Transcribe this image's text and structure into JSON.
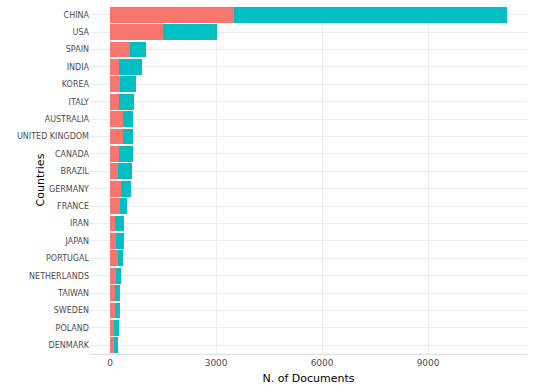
{
  "chart_data": {
    "type": "bar",
    "orientation": "horizontal",
    "stacked": true,
    "grid": true,
    "x_label": "N. of Documents",
    "y_label": "Countries",
    "categories": [
      "CHINA",
      "USA",
      "SPAIN",
      "INDIA",
      "KOREA",
      "ITALY",
      "AUSTRALIA",
      "UNITED KINGDOM",
      "CANADA",
      "BRAZIL",
      "GERMANY",
      "FRANCE",
      "IRAN",
      "JAPAN",
      "PORTUGAL",
      "NETHERLANDS",
      "TAIWAN",
      "SWEDEN",
      "POLAND",
      "DENMARK"
    ],
    "series": [
      {
        "color": "#F8766D",
        "values": [
          3520,
          1490,
          570,
          250,
          270,
          250,
          350,
          350,
          250,
          220,
          300,
          270,
          150,
          170,
          220,
          170,
          140,
          150,
          120,
          110
        ]
      },
      {
        "color": "#00BFC4",
        "values": [
          7700,
          1540,
          450,
          640,
          450,
          420,
          300,
          290,
          400,
          400,
          300,
          200,
          250,
          230,
          130,
          150,
          140,
          120,
          140,
          120
        ]
      }
    ],
    "xlim": [
      -570,
      11800
    ],
    "xticks": [
      0,
      3000,
      6000,
      9000
    ]
  }
}
